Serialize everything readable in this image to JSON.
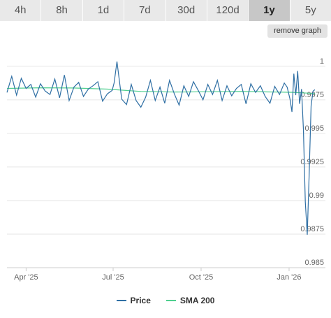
{
  "tabs": [
    {
      "label": "4h"
    },
    {
      "label": "8h"
    },
    {
      "label": "1d"
    },
    {
      "label": "7d"
    },
    {
      "label": "30d"
    },
    {
      "label": "120d"
    },
    {
      "label": "1y"
    },
    {
      "label": "5y"
    }
  ],
  "active_tab": "1y",
  "remove_graph_label": "remove graph",
  "colors": {
    "price": "#2f6fa4",
    "sma": "#4fcf8f",
    "grid": "#e6e6e6",
    "tab_active": "#c7c7c7",
    "tab": "#e9e9e9"
  },
  "chart_data": {
    "type": "line",
    "x_ticks": [
      "Apr '25",
      "Jul '25",
      "Oct '25",
      "Jan '26"
    ],
    "y_ticks": [
      "0.985",
      "0.9875",
      "0.99",
      "0.9925",
      "0.995",
      "0.9975",
      "1"
    ],
    "ylim": [
      0.985,
      1.0015
    ],
    "xlim": [
      "2025-03-12",
      "2026-02-08"
    ],
    "grid": true,
    "legend_position": "bottom",
    "series": [
      {
        "name": "Price",
        "color": "#2f6fa4",
        "x": [
          "2025-03-12",
          "2025-03-17",
          "2025-03-22",
          "2025-03-27",
          "2025-04-01",
          "2025-04-06",
          "2025-04-11",
          "2025-04-16",
          "2025-04-21",
          "2025-04-26",
          "2025-05-01",
          "2025-05-06",
          "2025-05-11",
          "2025-05-16",
          "2025-05-21",
          "2025-05-26",
          "2025-05-31",
          "2025-06-05",
          "2025-06-10",
          "2025-06-15",
          "2025-06-20",
          "2025-06-25",
          "2025-06-30",
          "2025-07-02",
          "2025-07-05",
          "2025-07-10",
          "2025-07-15",
          "2025-07-20",
          "2025-07-25",
          "2025-07-30",
          "2025-08-04",
          "2025-08-09",
          "2025-08-14",
          "2025-08-19",
          "2025-08-24",
          "2025-08-29",
          "2025-09-03",
          "2025-09-08",
          "2025-09-13",
          "2025-09-18",
          "2025-09-23",
          "2025-09-28",
          "2025-10-03",
          "2025-10-08",
          "2025-10-13",
          "2025-10-18",
          "2025-10-23",
          "2025-10-28",
          "2025-11-02",
          "2025-11-07",
          "2025-11-12",
          "2025-11-17",
          "2025-11-22",
          "2025-11-27",
          "2025-12-02",
          "2025-12-07",
          "2025-12-12",
          "2025-12-17",
          "2025-12-22",
          "2025-12-27",
          "2025-12-30",
          "2026-01-02",
          "2026-01-04",
          "2026-01-06",
          "2026-01-08",
          "2026-01-10",
          "2026-01-12",
          "2026-01-14",
          "2026-01-16",
          "2026-01-18",
          "2026-01-20",
          "2026-01-22",
          "2026-01-24",
          "2026-01-26",
          "2026-01-28"
        ],
        "y": [
          0.99805,
          0.99925,
          0.99785,
          0.9991,
          0.99835,
          0.99865,
          0.9977,
          0.9987,
          0.99815,
          0.9979,
          0.99905,
          0.99765,
          0.99935,
          0.99745,
          0.99845,
          0.9988,
          0.99775,
          0.9983,
          0.99855,
          0.99885,
          0.9974,
          0.99795,
          0.9982,
          0.99875,
          1.00035,
          0.99755,
          0.99715,
          0.99865,
          0.99745,
          0.99695,
          0.9977,
          0.99895,
          0.99745,
          0.99845,
          0.99725,
          0.99895,
          0.99795,
          0.9971,
          0.99855,
          0.99775,
          0.99885,
          0.9982,
          0.9975,
          0.99865,
          0.9979,
          0.99895,
          0.99745,
          0.99855,
          0.9978,
          0.99835,
          0.99865,
          0.9972,
          0.9987,
          0.99805,
          0.99855,
          0.99775,
          0.99725,
          0.9985,
          0.9979,
          0.99875,
          0.99845,
          0.99755,
          0.9966,
          0.99945,
          0.99785,
          0.99965,
          0.9972,
          0.9983,
          0.9953,
          0.9899,
          0.98745,
          0.9919,
          0.99705,
          0.99815,
          0.99825
        ]
      },
      {
        "name": "SMA 200",
        "color": "#4fcf8f",
        "x": [
          "2025-03-12",
          "2025-04-15",
          "2025-05-20",
          "2025-06-25",
          "2025-07-30",
          "2025-09-03",
          "2025-10-08",
          "2025-11-12",
          "2025-12-17",
          "2026-01-05",
          "2026-01-20",
          "2026-01-28"
        ],
        "y": [
          0.99835,
          0.9984,
          0.99838,
          0.9983,
          0.99812,
          0.99808,
          0.9981,
          0.99812,
          0.99808,
          0.99806,
          0.998,
          0.99796
        ]
      }
    ]
  }
}
